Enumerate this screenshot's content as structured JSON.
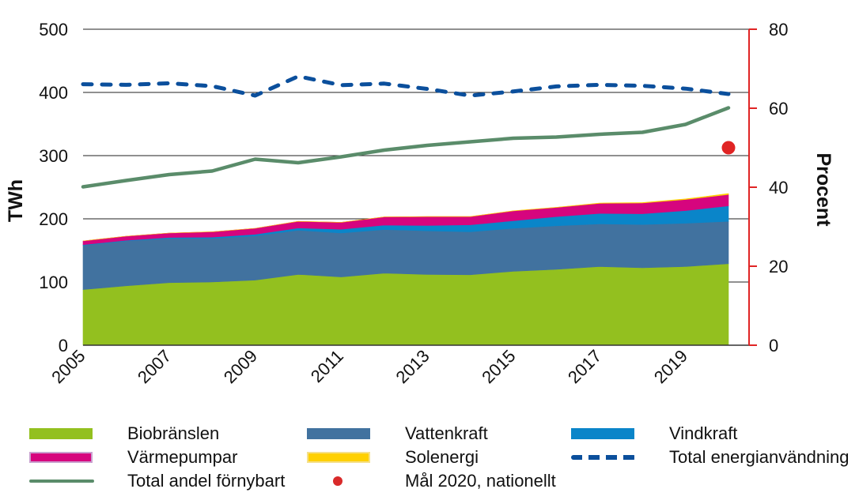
{
  "chart_data": {
    "type": "area",
    "title": "",
    "xlabel": "",
    "ylabel": "TWh",
    "y2label": "Procent",
    "ylim": [
      0,
      500
    ],
    "y2lim": [
      0,
      80
    ],
    "yticks": [
      "0",
      "100",
      "200",
      "300",
      "400",
      "500"
    ],
    "y2ticks": [
      "0",
      "20",
      "40",
      "60",
      "80"
    ],
    "grid": true,
    "legend_position": "bottom",
    "x": [
      2005,
      2006,
      2007,
      2008,
      2009,
      2010,
      2011,
      2012,
      2013,
      2014,
      2015,
      2016,
      2017,
      2018,
      2019,
      2020
    ],
    "xtick_labels": [
      "2005",
      "2007",
      "2009",
      "2011",
      "2013",
      "2015",
      "2017",
      "2019"
    ],
    "stacked_series": [
      {
        "name": "Biobränslen",
        "color": "#93c01f",
        "values": [
          88,
          94,
          99,
          100,
          103,
          112,
          108,
          114,
          112,
          111.5,
          117,
          120,
          124.5,
          122.5,
          124.5,
          129
        ]
      },
      {
        "name": "Vattenkraft",
        "color": "#41729f",
        "values": [
          70,
          71,
          70,
          69,
          70,
          70,
          69.5,
          69,
          69,
          68,
          68,
          69,
          67.5,
          68.5,
          68.5,
          67
        ]
      },
      {
        "name": "Vindkraft",
        "color": "#0a85c9",
        "values": [
          1,
          1,
          1.5,
          2,
          2.5,
          3.5,
          6,
          7,
          8.5,
          11,
          12,
          14.5,
          16.5,
          17,
          20,
          24.5
        ]
      },
      {
        "name": "Värmepumpar",
        "color": "#d6057e",
        "values": [
          6,
          6.5,
          7,
          8.5,
          9.5,
          10.5,
          11,
          13,
          14,
          13,
          15.5,
          14.5,
          16,
          17,
          17.5,
          18
        ]
      },
      {
        "name": "Solenergi",
        "color": "#ffd000",
        "values": [
          0,
          0,
          0,
          0,
          0,
          0,
          0,
          0,
          0.1,
          0.1,
          0.2,
          0.3,
          0.5,
          0.8,
          1,
          1.5
        ]
      }
    ],
    "line_series": [
      {
        "name": "Total energianvändning",
        "axis": "left",
        "style": "dashed",
        "color": "#0b4f9c",
        "values": [
          413,
          412,
          414.5,
          410,
          395,
          425.5,
          411.5,
          414,
          405.5,
          395,
          401.5,
          409.5,
          412,
          410.5,
          406,
          397.5
        ]
      },
      {
        "name": "Total andel förnybart",
        "axis": "right",
        "style": "solid",
        "color": "#5a8c6a",
        "values": [
          40.1,
          41.7,
          43.2,
          44.1,
          47.1,
          46.2,
          47.7,
          49.4,
          50.6,
          51.5,
          52.4,
          52.7,
          53.4,
          53.9,
          55.9,
          60.1
        ]
      }
    ],
    "points": [
      {
        "name": "Mål 2020, nationellt",
        "axis": "right",
        "color": "#e02424",
        "x": 2020,
        "y": 50
      }
    ],
    "right_axis_color": "#e02424"
  },
  "legend": [
    {
      "label": "Biobränslen",
      "kind": "area",
      "color": "#93c01f"
    },
    {
      "label": "Vattenkraft",
      "kind": "area",
      "color": "#41729f"
    },
    {
      "label": "Vindkraft",
      "kind": "area",
      "color": "#0a85c9"
    },
    {
      "label": "Värmepumpar",
      "kind": "area",
      "color": "#d6057e",
      "border": "#c9a0cf"
    },
    {
      "label": "Solenergi",
      "kind": "area",
      "color": "#ffd000",
      "border": "#f5e08a"
    },
    {
      "label": "Total energianvändning",
      "kind": "dash",
      "color": "#0b4f9c"
    },
    {
      "label": "Total andel förnybart",
      "kind": "line",
      "color": "#5a8c6a"
    },
    {
      "label": "Mål 2020, nationellt",
      "kind": "dot",
      "color": "#d92a2a"
    }
  ]
}
